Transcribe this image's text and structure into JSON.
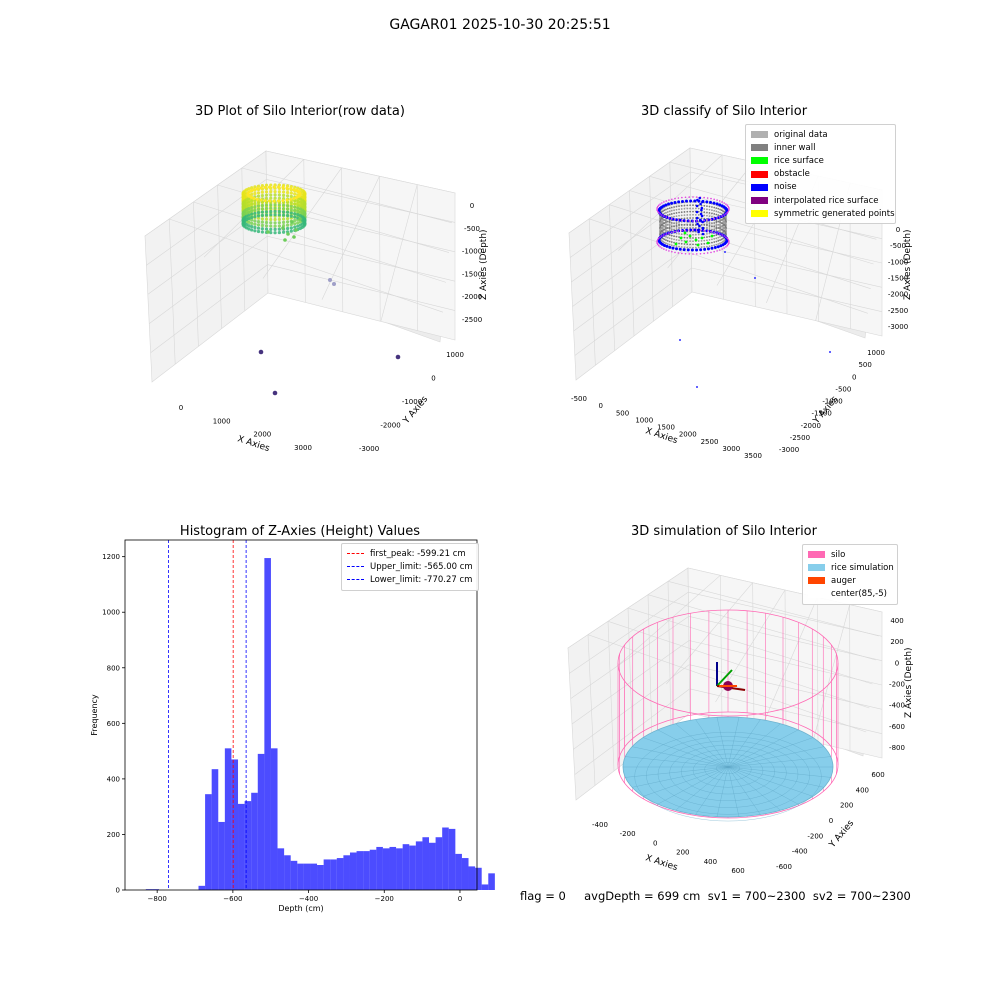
{
  "suptitle": "GAGAR01 2025-10-30 20:25:51",
  "footer": "flag = 0     avgDepth = 699 cm  sv1 = 700~2300  sv2 = 700~2300",
  "chart_data": [
    {
      "type": "scatter",
      "title": "3D Plot of Silo Interior(row data)",
      "xlabel": "X Axies",
      "ylabel": "Y Axies",
      "zlabel": "Z Axies (Depth)",
      "x_ticks": [
        "0",
        "1000",
        "2000",
        "3000"
      ],
      "y_ticks": [
        "1000",
        "0",
        "-1000",
        "-2000",
        "-3000"
      ],
      "z_ticks": [
        "0",
        "-500",
        "-1000",
        "-1500",
        "-2000",
        "-2500"
      ],
      "colormap": "viridis",
      "notes_points": [
        {
          "x": 2500,
          "y": 300,
          "z": -1700
        },
        {
          "x": 2550,
          "y": 200,
          "z": -1800
        },
        {
          "x": 1000,
          "y": -1500,
          "z": -2900
        },
        {
          "x": 3000,
          "y": 700,
          "z": -2700
        },
        {
          "x": 1300,
          "y": -2200,
          "z": -3000
        }
      ]
    },
    {
      "type": "scatter",
      "title": "3D classify of Silo Interior",
      "xlabel": "X Axies",
      "ylabel": "Y Axies",
      "zlabel": "Z Axies (Depth)",
      "x_ticks": [
        "-500",
        "0",
        "500",
        "1000",
        "1500",
        "2000",
        "2500",
        "3000",
        "3500"
      ],
      "y_ticks": [
        "1000",
        "500",
        "0",
        "-500",
        "-1000",
        "-1500",
        "-2000",
        "-2500",
        "-3000"
      ],
      "z_ticks": [
        "0",
        "-500",
        "-1000",
        "-1500",
        "-2000",
        "-2500",
        "-3000"
      ],
      "legend": [
        {
          "label": "original data",
          "color": "#b0b0b0"
        },
        {
          "label": "inner wall",
          "color": "#808080"
        },
        {
          "label": "rice surface",
          "color": "#00ff00"
        },
        {
          "label": "obstacle",
          "color": "#ff0000"
        },
        {
          "label": "noise",
          "color": "#0000ff"
        },
        {
          "label": "interpolated rice surface",
          "color": "#800080"
        },
        {
          "label": "symmetric generated points",
          "color": "#ffff00"
        }
      ]
    },
    {
      "type": "bar",
      "title": "Histogram of Z-Axies (Height) Values",
      "xlabel": "Depth (cm)",
      "ylabel": "Frequency",
      "xlim": [
        -885,
        45
      ],
      "ylim": [
        0,
        1260
      ],
      "x_ticks": [
        -800,
        -600,
        -400,
        -200,
        0
      ],
      "y_ticks": [
        0,
        200,
        400,
        600,
        800,
        1000,
        1200
      ],
      "bar_color": "#0000ff",
      "bin_start": -830,
      "bin_width": 17.4,
      "values": [
        3,
        3,
        0,
        0,
        0,
        0,
        0,
        0,
        15,
        345,
        435,
        245,
        510,
        470,
        310,
        320,
        350,
        490,
        1195,
        510,
        150,
        125,
        105,
        95,
        95,
        95,
        90,
        110,
        110,
        115,
        125,
        135,
        140,
        140,
        145,
        155,
        150,
        155,
        150,
        165,
        160,
        175,
        190,
        170,
        190,
        225,
        220,
        130,
        115,
        85,
        80,
        20,
        60
      ],
      "lines": [
        {
          "label": "first_peak: -599.21 cm",
          "x": -599.21,
          "color": "#ff0000"
        },
        {
          "label": "Upper_limit: -565.00 cm",
          "x": -565.0,
          "color": "#0000ff"
        },
        {
          "label": "Lower_limit: -770.27 cm",
          "x": -770.27,
          "color": "#0000ff"
        }
      ]
    },
    {
      "type": "scatter",
      "title": "3D simulation of Silo Interior",
      "xlabel": "X Axies",
      "ylabel": "Y Axies",
      "zlabel": "Z Axies (Depth)",
      "x_ticks": [
        "-400",
        "-200",
        "0",
        "200",
        "400",
        "600"
      ],
      "y_ticks": [
        "600",
        "400",
        "200",
        "0",
        "-200",
        "-400",
        "-600"
      ],
      "z_ticks": [
        "400",
        "200",
        "0",
        "-200",
        "-400",
        "-600",
        "-800"
      ],
      "legend": [
        {
          "label": "silo",
          "color": "#ff69b4"
        },
        {
          "label": "rice simulation",
          "color": "#87ceeb"
        },
        {
          "label": "auger",
          "color": "#ff4500"
        },
        {
          "label": "center(85,-5)",
          "color": "#ffffff"
        }
      ]
    }
  ]
}
